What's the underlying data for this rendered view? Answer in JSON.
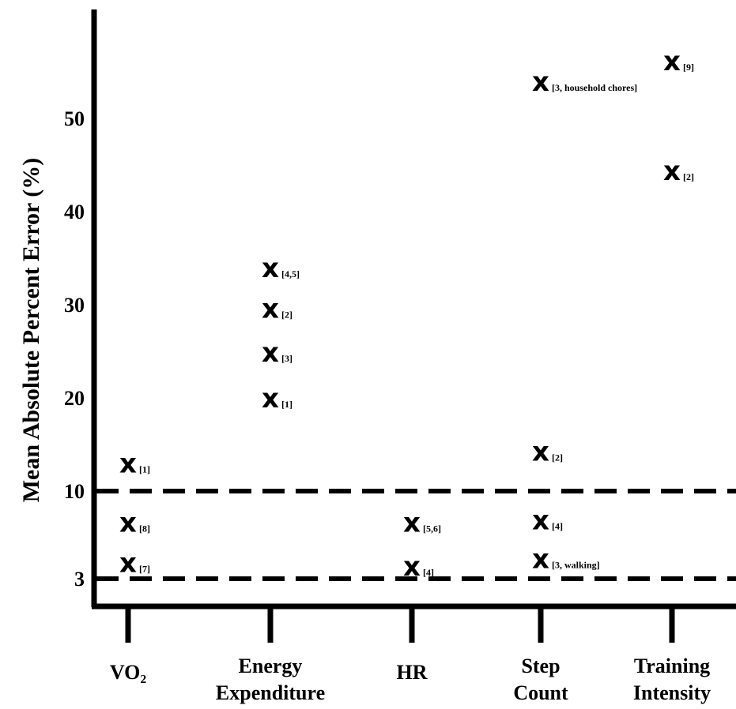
{
  "chart_data": {
    "type": "scatter",
    "ylabel": "Mean Absolute Percent Error (%)",
    "y_ticks": [
      "3",
      "10",
      "20",
      "30",
      "40",
      "50"
    ],
    "reference_lines": [
      {
        "y": 3,
        "style": "dashed"
      },
      {
        "y": 10,
        "style": "dashed"
      }
    ],
    "categories": [
      {
        "id": "vo2",
        "label_lines": [
          "VO₂"
        ]
      },
      {
        "id": "ee",
        "label_lines": [
          "Energy",
          "Expenditure"
        ]
      },
      {
        "id": "hr",
        "label_lines": [
          "HR"
        ]
      },
      {
        "id": "steps",
        "label_lines": [
          "Step",
          "Count"
        ]
      },
      {
        "id": "ti",
        "label_lines": [
          "Training",
          "Intensity"
        ]
      }
    ],
    "marker_symbol": "x",
    "points": [
      {
        "category": "vo2",
        "y": 13.0,
        "ref": "[1]"
      },
      {
        "category": "vo2",
        "y": 7.5,
        "ref": "[8]"
      },
      {
        "category": "vo2",
        "y": 4.3,
        "ref": "[7]"
      },
      {
        "category": "ee",
        "y": 34.0,
        "ref": "[4,5]"
      },
      {
        "category": "ee",
        "y": 29.6,
        "ref": "[2]"
      },
      {
        "category": "ee",
        "y": 24.9,
        "ref": "[3]"
      },
      {
        "category": "ee",
        "y": 20.0,
        "ref": "[1]"
      },
      {
        "category": "hr",
        "y": 7.5,
        "ref": "[5,6]"
      },
      {
        "category": "hr",
        "y": 4.0,
        "ref": "[4]"
      },
      {
        "category": "steps",
        "y": 54.0,
        "ref": "[3, household chores]"
      },
      {
        "category": "steps",
        "y": 14.3,
        "ref": "[2]"
      },
      {
        "category": "steps",
        "y": 7.7,
        "ref": "[4]"
      },
      {
        "category": "steps",
        "y": 4.6,
        "ref": "[3, walking]"
      },
      {
        "category": "ti",
        "y": 56.2,
        "ref": "[9]"
      },
      {
        "category": "ti",
        "y": 44.4,
        "ref": "[2]"
      }
    ],
    "grid": false,
    "legend": "none"
  }
}
